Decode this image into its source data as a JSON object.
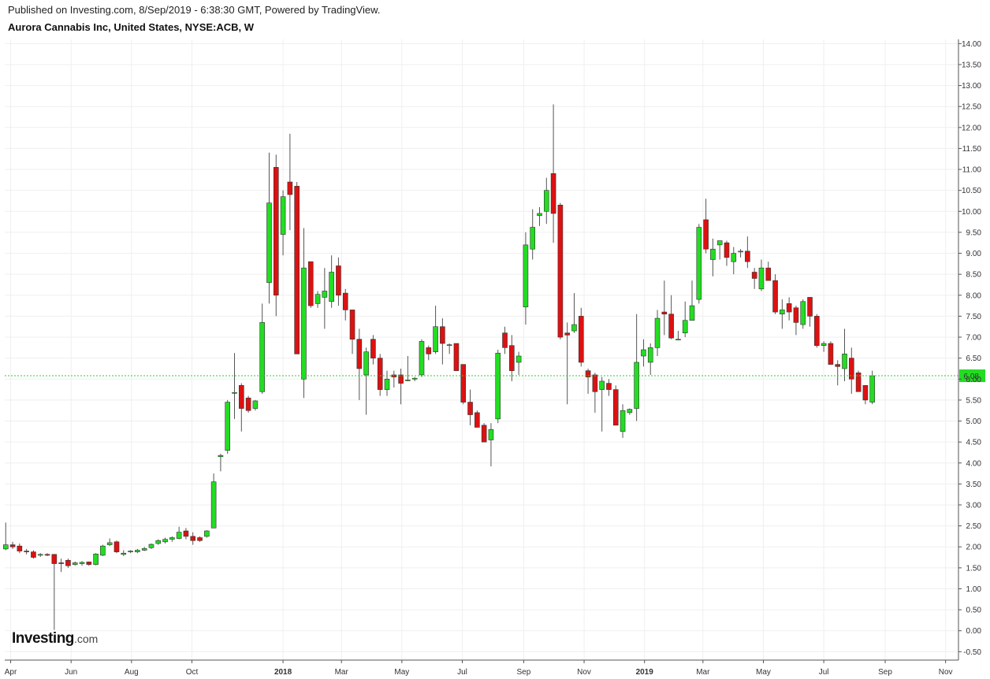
{
  "header": {
    "published": "Published on Investing.com, 8/Sep/2019 - 6:38:30 GMT, Powered by TradingView.",
    "title": "Aurora Cannabis Inc, United States, NYSE:ACB, W"
  },
  "watermark": {
    "brand": "Investing",
    "suffix": ".com"
  },
  "colors": {
    "up": "#22dd22",
    "down": "#dd1111",
    "wick": "#555555",
    "last_price_line": "#2ecc2e",
    "grid": "#efefef"
  },
  "chart_data": {
    "type": "candlestick",
    "interval": "W",
    "symbol": "NYSE:ACB",
    "last_price": 6.08,
    "last_price_label": "6.08",
    "ylim": [
      -0.7,
      14.1
    ],
    "y_ticks": [
      "14.00",
      "13.50",
      "13.00",
      "12.50",
      "12.00",
      "11.50",
      "11.00",
      "10.50",
      "10.00",
      "9.50",
      "9.00",
      "8.50",
      "8.00",
      "7.50",
      "7.00",
      "6.50",
      "6.00",
      "5.50",
      "5.00",
      "4.50",
      "4.00",
      "3.50",
      "3.00",
      "2.50",
      "2.00",
      "1.50",
      "1.00",
      "0.50",
      "0.00",
      "-0.50"
    ],
    "x_ticks": [
      {
        "label": "Apr",
        "date": "2017-04-01",
        "bold": false
      },
      {
        "label": "Jun",
        "date": "2017-06-01",
        "bold": false
      },
      {
        "label": "Aug",
        "date": "2017-08-01",
        "bold": false
      },
      {
        "label": "Oct",
        "date": "2017-10-01",
        "bold": false
      },
      {
        "label": "2018",
        "date": "2018-01-01",
        "bold": true
      },
      {
        "label": "Mar",
        "date": "2018-03-01",
        "bold": false
      },
      {
        "label": "May",
        "date": "2018-05-01",
        "bold": false
      },
      {
        "label": "Jul",
        "date": "2018-07-01",
        "bold": false
      },
      {
        "label": "Sep",
        "date": "2018-09-01",
        "bold": false
      },
      {
        "label": "Nov",
        "date": "2018-11-01",
        "bold": false
      },
      {
        "label": "2019",
        "date": "2019-01-01",
        "bold": true
      },
      {
        "label": "Mar",
        "date": "2019-03-01",
        "bold": false
      },
      {
        "label": "May",
        "date": "2019-05-01",
        "bold": false
      },
      {
        "label": "Jul",
        "date": "2019-07-01",
        "bold": false
      },
      {
        "label": "Sep",
        "date": "2019-09-01",
        "bold": false
      },
      {
        "label": "Nov",
        "date": "2019-11-01",
        "bold": false
      }
    ],
    "x_range": [
      "2017-03-26",
      "2019-11-14"
    ],
    "series_start": "2017-03-27",
    "candles": [
      [
        1.95,
        2.58,
        1.92,
        2.05
      ],
      [
        2.05,
        2.12,
        1.95,
        2.0
      ],
      [
        2.02,
        2.08,
        1.85,
        1.9
      ],
      [
        1.9,
        1.95,
        1.82,
        1.88
      ],
      [
        1.88,
        1.92,
        1.72,
        1.75
      ],
      [
        1.8,
        1.85,
        1.76,
        1.82
      ],
      [
        1.82,
        1.85,
        1.78,
        1.8
      ],
      [
        1.82,
        1.83,
        0.02,
        1.6
      ],
      [
        1.62,
        1.72,
        1.4,
        1.6
      ],
      [
        1.68,
        1.72,
        1.5,
        1.55
      ],
      [
        1.58,
        1.65,
        1.55,
        1.62
      ],
      [
        1.6,
        1.66,
        1.55,
        1.63
      ],
      [
        1.64,
        1.65,
        1.55,
        1.58
      ],
      [
        1.58,
        1.85,
        1.56,
        1.83
      ],
      [
        1.8,
        2.05,
        1.78,
        2.02
      ],
      [
        2.05,
        2.2,
        2.02,
        2.1
      ],
      [
        2.12,
        2.15,
        1.85,
        1.88
      ],
      [
        1.82,
        1.92,
        1.78,
        1.85
      ],
      [
        1.88,
        1.92,
        1.85,
        1.9
      ],
      [
        1.88,
        1.95,
        1.85,
        1.92
      ],
      [
        1.92,
        2.0,
        1.9,
        1.96
      ],
      [
        1.98,
        2.08,
        1.95,
        2.06
      ],
      [
        2.08,
        2.18,
        2.05,
        2.15
      ],
      [
        2.12,
        2.22,
        2.08,
        2.18
      ],
      [
        2.18,
        2.25,
        2.12,
        2.22
      ],
      [
        2.2,
        2.48,
        2.18,
        2.35
      ],
      [
        2.38,
        2.45,
        2.18,
        2.25
      ],
      [
        2.25,
        2.35,
        2.05,
        2.15
      ],
      [
        2.22,
        2.25,
        2.12,
        2.15
      ],
      [
        2.25,
        2.4,
        2.22,
        2.38
      ],
      [
        2.45,
        3.75,
        2.45,
        3.55
      ],
      [
        4.15,
        4.22,
        3.8,
        4.18
      ],
      [
        4.3,
        5.5,
        4.22,
        5.45
      ],
      [
        5.68,
        6.62,
        5.05,
        5.68
      ],
      [
        5.85,
        5.9,
        4.75,
        5.3
      ],
      [
        5.55,
        5.6,
        5.2,
        5.25
      ],
      [
        5.3,
        5.5,
        5.25,
        5.48
      ],
      [
        5.7,
        7.8,
        5.65,
        7.35
      ],
      [
        8.3,
        11.4,
        7.8,
        10.2
      ],
      [
        11.05,
        11.35,
        7.5,
        8.0
      ],
      [
        9.45,
        10.5,
        8.95,
        10.35
      ],
      [
        10.7,
        11.85,
        9.55,
        10.4
      ],
      [
        10.6,
        10.7,
        6.6,
        6.6
      ],
      [
        6.0,
        9.6,
        5.55,
        8.65
      ],
      [
        8.8,
        8.8,
        7.7,
        7.75
      ],
      [
        7.8,
        8.1,
        7.7,
        8.02
      ],
      [
        7.95,
        8.65,
        7.2,
        8.1
      ],
      [
        7.85,
        8.95,
        7.7,
        8.55
      ],
      [
        8.7,
        8.9,
        7.75,
        8.0
      ],
      [
        8.05,
        8.15,
        7.4,
        7.65
      ],
      [
        7.65,
        7.65,
        6.6,
        6.95
      ],
      [
        6.95,
        7.2,
        5.5,
        6.25
      ],
      [
        6.1,
        6.75,
        5.15,
        6.65
      ],
      [
        6.95,
        7.05,
        6.35,
        6.5
      ],
      [
        6.5,
        6.6,
        5.6,
        5.75
      ],
      [
        5.75,
        6.2,
        5.6,
        6.0
      ],
      [
        6.1,
        6.2,
        5.8,
        6.05
      ],
      [
        6.1,
        6.25,
        5.4,
        5.9
      ],
      [
        5.98,
        6.55,
        5.95,
        5.98
      ],
      [
        6.0,
        6.05,
        5.95,
        6.02
      ],
      [
        6.1,
        6.95,
        6.05,
        6.9
      ],
      [
        6.75,
        6.8,
        6.45,
        6.6
      ],
      [
        6.65,
        7.75,
        6.6,
        7.25
      ],
      [
        7.25,
        7.45,
        6.35,
        6.85
      ],
      [
        6.8,
        6.85,
        6.6,
        6.82
      ],
      [
        6.85,
        6.85,
        6.3,
        6.2
      ],
      [
        6.35,
        6.35,
        5.4,
        5.45
      ],
      [
        5.45,
        5.75,
        4.9,
        5.15
      ],
      [
        5.2,
        5.25,
        4.85,
        4.85
      ],
      [
        4.9,
        4.95,
        4.5,
        4.5
      ],
      [
        4.55,
        4.95,
        3.92,
        4.8
      ],
      [
        5.05,
        6.7,
        4.95,
        6.62
      ],
      [
        7.1,
        7.25,
        6.6,
        6.75
      ],
      [
        6.8,
        7.05,
        5.95,
        6.2
      ],
      [
        6.4,
        6.65,
        6.1,
        6.55
      ],
      [
        7.72,
        9.5,
        7.3,
        9.2
      ],
      [
        9.1,
        10.05,
        8.85,
        9.62
      ],
      [
        9.9,
        10.1,
        9.65,
        9.95
      ],
      [
        10.0,
        10.8,
        9.7,
        10.5
      ],
      [
        10.9,
        12.55,
        9.25,
        9.95
      ],
      [
        10.15,
        10.2,
        6.95,
        7.0
      ],
      [
        7.1,
        7.35,
        5.4,
        7.05
      ],
      [
        7.15,
        8.05,
        7.1,
        7.3
      ],
      [
        7.5,
        7.7,
        6.3,
        6.4
      ],
      [
        6.2,
        6.25,
        5.65,
        6.05
      ],
      [
        6.1,
        6.15,
        5.2,
        5.7
      ],
      [
        5.75,
        6.05,
        4.75,
        5.95
      ],
      [
        5.9,
        6.0,
        5.6,
        5.75
      ],
      [
        5.75,
        5.85,
        5.0,
        4.9
      ],
      [
        4.75,
        5.4,
        4.6,
        5.25
      ],
      [
        5.2,
        5.3,
        5.15,
        5.28
      ],
      [
        5.3,
        7.55,
        5.0,
        6.4
      ],
      [
        6.55,
        6.95,
        6.3,
        6.7
      ],
      [
        6.4,
        6.85,
        6.1,
        6.75
      ],
      [
        6.75,
        7.65,
        6.55,
        7.45
      ],
      [
        7.6,
        8.35,
        7.05,
        7.55
      ],
      [
        7.55,
        8.0,
        6.95,
        6.98
      ],
      [
        6.95,
        7.15,
        6.95,
        6.95
      ],
      [
        7.1,
        7.85,
        7.0,
        7.4
      ],
      [
        7.4,
        8.35,
        7.4,
        7.75
      ],
      [
        7.9,
        9.7,
        7.8,
        9.62
      ],
      [
        9.8,
        10.3,
        9.0,
        9.1
      ],
      [
        8.85,
        9.35,
        8.45,
        9.1
      ],
      [
        9.2,
        9.3,
        8.85,
        9.3
      ],
      [
        9.25,
        9.3,
        8.7,
        8.9
      ],
      [
        8.8,
        9.15,
        8.5,
        9.0
      ],
      [
        9.05,
        9.1,
        8.9,
        9.05
      ],
      [
        9.05,
        9.4,
        8.65,
        8.8
      ],
      [
        8.55,
        8.65,
        8.15,
        8.4
      ],
      [
        8.15,
        8.85,
        8.1,
        8.65
      ],
      [
        8.65,
        8.8,
        8.4,
        8.35
      ],
      [
        8.35,
        8.5,
        7.55,
        7.6
      ],
      [
        7.55,
        7.9,
        7.2,
        7.65
      ],
      [
        7.8,
        7.95,
        7.4,
        7.6
      ],
      [
        7.7,
        7.75,
        7.05,
        7.35
      ],
      [
        7.3,
        7.9,
        7.2,
        7.85
      ],
      [
        7.95,
        7.95,
        7.25,
        7.5
      ],
      [
        7.5,
        7.55,
        6.75,
        6.8
      ],
      [
        6.8,
        6.9,
        6.65,
        6.85
      ],
      [
        6.85,
        6.9,
        6.35,
        6.35
      ],
      [
        6.35,
        6.45,
        5.85,
        6.3
      ],
      [
        6.25,
        7.2,
        5.95,
        6.6
      ],
      [
        6.5,
        6.75,
        5.65,
        6.0
      ],
      [
        6.15,
        6.2,
        5.7,
        5.7
      ],
      [
        5.85,
        5.85,
        5.4,
        5.5
      ],
      [
        5.45,
        6.2,
        5.4,
        6.08
      ]
    ]
  }
}
